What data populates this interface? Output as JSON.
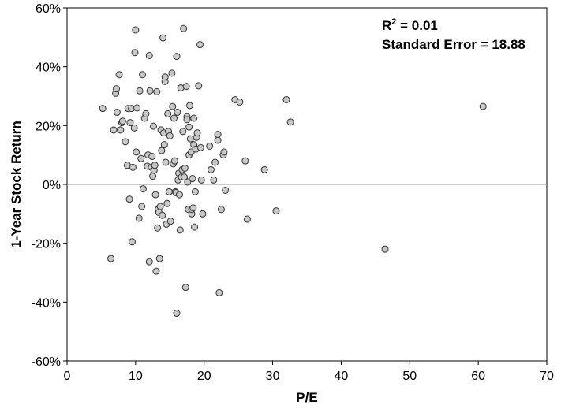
{
  "chart_data": {
    "type": "scatter",
    "title": "",
    "xlabel": "P/E",
    "ylabel": "1-Year Stock Return",
    "xlim": [
      0,
      70
    ],
    "ylim": [
      -60,
      60
    ],
    "x_ticks": [
      0,
      10,
      20,
      30,
      40,
      50,
      60,
      70
    ],
    "y_ticks": [
      -60,
      -40,
      -20,
      0,
      20,
      40,
      60
    ],
    "x_tick_labels": [
      "0",
      "10",
      "20",
      "30",
      "40",
      "50",
      "60",
      "70"
    ],
    "y_tick_labels": [
      "-60%",
      "-40%",
      "-20%",
      "0%",
      "20%",
      "40%",
      "60%"
    ],
    "grid": false,
    "zero_line": true,
    "annotations": {
      "r2_prefix": "R",
      "r2_sup": "2",
      "r2_value": " = 0.01",
      "standard_error": "Standard Error = 18.88"
    },
    "colors": {
      "marker_fill": "#c8c8c8",
      "marker_edge": "#333333",
      "zero_line": "#999999"
    },
    "points": [
      [
        5.2,
        25.8
      ],
      [
        6.4,
        -25.2
      ],
      [
        6.8,
        18.5
      ],
      [
        7.1,
        31
      ],
      [
        7.2,
        32.5
      ],
      [
        7.3,
        24.5
      ],
      [
        7.6,
        37.3
      ],
      [
        7.8,
        18.5
      ],
      [
        8,
        21
      ],
      [
        8.1,
        21.5
      ],
      [
        8.5,
        14.5
      ],
      [
        8.8,
        6.5
      ],
      [
        8.9,
        25.8
      ],
      [
        9.1,
        -5
      ],
      [
        9.2,
        21
      ],
      [
        9.4,
        25.8
      ],
      [
        9.5,
        -19.5
      ],
      [
        9.6,
        5.8
      ],
      [
        9.8,
        19.2
      ],
      [
        9.9,
        44.8
      ],
      [
        10,
        52.5
      ],
      [
        10.1,
        11
      ],
      [
        10.2,
        26
      ],
      [
        10.5,
        -11.5
      ],
      [
        10.6,
        31.8
      ],
      [
        10.8,
        8.8
      ],
      [
        10.9,
        -7.5
      ],
      [
        11,
        37.3
      ],
      [
        11.1,
        -1.5
      ],
      [
        11.3,
        22.5
      ],
      [
        11.5,
        24
      ],
      [
        11.7,
        6.2
      ],
      [
        11.8,
        10
      ],
      [
        12,
        -26.3
      ],
      [
        12,
        43.8
      ],
      [
        12.1,
        31.8
      ],
      [
        12.3,
        5.8
      ],
      [
        12.4,
        9.5
      ],
      [
        12.5,
        2.8
      ],
      [
        12.6,
        19.8
      ],
      [
        12.7,
        4.8
      ],
      [
        12.8,
        6.5
      ],
      [
        12.9,
        -3.5
      ],
      [
        13,
        -29.5
      ],
      [
        13.1,
        31.5
      ],
      [
        13.2,
        -14.8
      ],
      [
        13.3,
        -8.5
      ],
      [
        13.4,
        -9.5
      ],
      [
        13.5,
        -25.2
      ],
      [
        13.6,
        -7.5
      ],
      [
        13.7,
        18.5
      ],
      [
        13.8,
        11.5
      ],
      [
        13.9,
        -10.5
      ],
      [
        14,
        49.8
      ],
      [
        14.1,
        17.5
      ],
      [
        14.2,
        13.5
      ],
      [
        14.3,
        35
      ],
      [
        14.3,
        36.5
      ],
      [
        14.4,
        7.5
      ],
      [
        14.5,
        -13.5
      ],
      [
        14.6,
        -6.5
      ],
      [
        14.7,
        24
      ],
      [
        14.8,
        18
      ],
      [
        14.9,
        -2.5
      ],
      [
        15,
        16.5
      ],
      [
        15.1,
        -12.5
      ],
      [
        15.3,
        37.8
      ],
      [
        15.4,
        26.5
      ],
      [
        15.5,
        7
      ],
      [
        15.6,
        22.5
      ],
      [
        15.7,
        8
      ],
      [
        15.8,
        -2.5
      ],
      [
        15.9,
        -2.8
      ],
      [
        16,
        43.5
      ],
      [
        16,
        -43.8
      ],
      [
        16.1,
        24.5
      ],
      [
        16.2,
        1.5
      ],
      [
        16.3,
        3.8
      ],
      [
        16.4,
        -3.5
      ],
      [
        16.5,
        -15.5
      ],
      [
        16.6,
        32.8
      ],
      [
        16.7,
        2.5
      ],
      [
        16.8,
        5
      ],
      [
        16.9,
        18
      ],
      [
        17,
        53
      ],
      [
        17.1,
        2.5
      ],
      [
        17.2,
        5.5
      ],
      [
        17.3,
        -35
      ],
      [
        17.4,
        33.3
      ],
      [
        17.5,
        23
      ],
      [
        17.5,
        22
      ],
      [
        17.6,
        0.8
      ],
      [
        17.7,
        -8.5
      ],
      [
        17.8,
        10
      ],
      [
        17.8,
        19.5
      ],
      [
        17.9,
        26.8
      ],
      [
        18,
        15.5
      ],
      [
        18.1,
        11
      ],
      [
        18.2,
        -10
      ],
      [
        18.2,
        -8.5
      ],
      [
        18.3,
        2
      ],
      [
        18.4,
        -8
      ],
      [
        18.5,
        22.5
      ],
      [
        18.5,
        13.5
      ],
      [
        18.6,
        -14.5
      ],
      [
        18.7,
        -2.5
      ],
      [
        18.8,
        12
      ],
      [
        18.9,
        16
      ],
      [
        19,
        17.5
      ],
      [
        19.2,
        33.5
      ],
      [
        19.4,
        47.5
      ],
      [
        19.5,
        12.5
      ],
      [
        19.6,
        1.5
      ],
      [
        19.8,
        -10
      ],
      [
        20.8,
        13
      ],
      [
        21,
        5
      ],
      [
        21.4,
        1.5
      ],
      [
        21.6,
        7.5
      ],
      [
        22,
        15
      ],
      [
        22,
        17
      ],
      [
        22.2,
        -36.8
      ],
      [
        22.5,
        -8.5
      ],
      [
        22.8,
        10
      ],
      [
        22.9,
        11
      ],
      [
        23.1,
        -2
      ],
      [
        24.5,
        28.8
      ],
      [
        25.2,
        28
      ],
      [
        26,
        8
      ],
      [
        26.3,
        -11.8
      ],
      [
        28.8,
        5
      ],
      [
        30.5,
        -9
      ],
      [
        32,
        28.8
      ],
      [
        32.6,
        21.2
      ],
      [
        46.4,
        -22
      ],
      [
        60.7,
        26.5
      ]
    ]
  }
}
